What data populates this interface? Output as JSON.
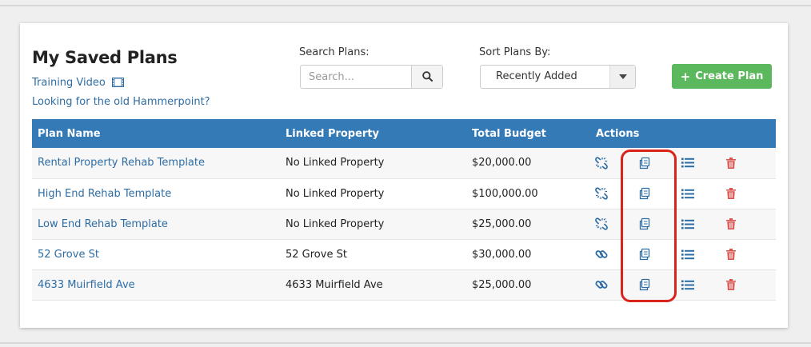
{
  "header": {
    "title": "My Saved Plans",
    "training_video_label": "Training Video",
    "old_hammerpoint_label": "Looking for the old Hammerpoint?"
  },
  "search": {
    "label": "Search Plans:",
    "placeholder": "Search..."
  },
  "sort": {
    "label": "Sort Plans By:",
    "selected": "Recently Added"
  },
  "create_button": {
    "label": "Create Plan"
  },
  "table": {
    "columns": [
      "Plan Name",
      "Linked Property",
      "Total Budget",
      "Actions"
    ],
    "rows": [
      {
        "plan_name": "Rental Property Rehab Template",
        "linked_property": "No Linked Property",
        "total_budget": "$20,000.00",
        "linked": false
      },
      {
        "plan_name": "High End Rehab Template",
        "linked_property": "No Linked Property",
        "total_budget": "$100,000.00",
        "linked": false
      },
      {
        "plan_name": "Low End Rehab Template",
        "linked_property": "No Linked Property",
        "total_budget": "$25,000.00",
        "linked": false
      },
      {
        "plan_name": "52 Grove St",
        "linked_property": "52 Grove St",
        "total_budget": "$30,000.00",
        "linked": true
      },
      {
        "plan_name": "4633 Muirfield Ave",
        "linked_property": "4633 Muirfield Ave",
        "total_budget": "$25,000.00",
        "linked": true
      }
    ]
  },
  "icons": {
    "search": "search-icon",
    "film": "film-icon",
    "caret": "caret-down-icon",
    "plus": "plus-icon",
    "unlink": "unlink-icon",
    "link": "link-icon",
    "copy": "copy-icon",
    "list": "list-icon",
    "trash": "trash-icon"
  },
  "colors": {
    "header_bg": "#337ab7",
    "link": "#2e6da4",
    "create_button": "#5cb85c",
    "trash": "#d9534f",
    "highlight": "#d9231b"
  }
}
